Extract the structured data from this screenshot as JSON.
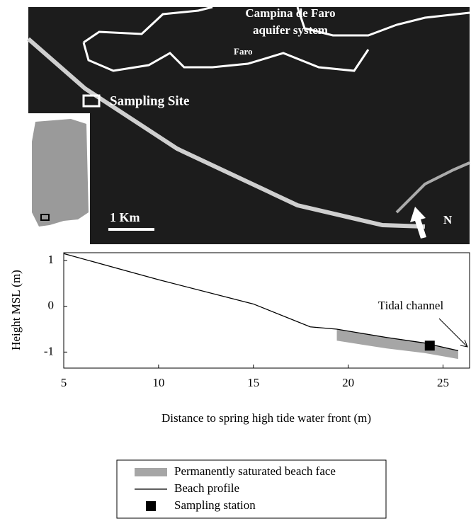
{
  "map": {
    "aquifer_label_1": "Campina de Faro",
    "aquifer_label_2": "aquifer system",
    "city": "Faro",
    "site": "Sampling Site",
    "scale": "1 Km",
    "north": "N"
  },
  "chart_data": {
    "type": "line",
    "xlabel": "Distance to spring high tide water front (m)",
    "ylabel": "Height MSL (m)",
    "xlim": [
      5,
      26.4
    ],
    "ylim": [
      -1.35,
      1.17
    ],
    "xticks": [
      5,
      10,
      15,
      20,
      25
    ],
    "yticks": [
      -1,
      0,
      1
    ],
    "annotation": "Tidal channel",
    "series": [
      {
        "name": "Permanently saturated beach face",
        "color": "#a6a6a6",
        "x": [
          19.4,
          22,
          24,
          25.8
        ],
        "values": [
          -0.5,
          -0.68,
          -0.8,
          -0.97
        ],
        "lower": [
          -0.75,
          -0.92,
          -1.02,
          -1.15
        ]
      },
      {
        "name": "Beach profile",
        "color": "#000000",
        "x": [
          5,
          10,
          15,
          18,
          19.4,
          22,
          24,
          25.8
        ],
        "values": [
          1.15,
          0.58,
          0.05,
          -0.45,
          -0.5,
          -0.68,
          -0.8,
          -0.97
        ]
      },
      {
        "name": "Sampling station",
        "color": "#000000",
        "x": [
          24.3
        ],
        "values": [
          -0.86
        ]
      }
    ]
  }
}
